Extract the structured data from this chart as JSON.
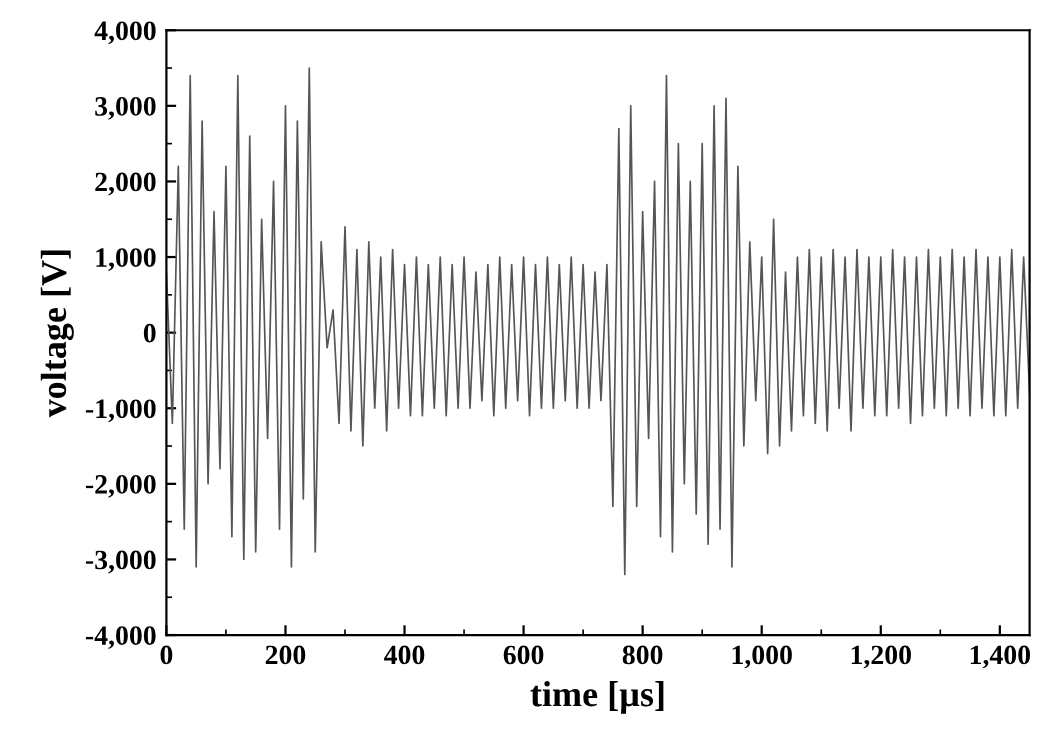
{
  "chart_data": {
    "type": "line",
    "xlabel": "time [µs]",
    "ylabel": "voltage [V]",
    "xlim": [
      0,
      1450
    ],
    "ylim": [
      -4000,
      4000
    ],
    "xticks": [
      0,
      200,
      400,
      600,
      800,
      {
        "value": 1000,
        "label": "1,000"
      },
      {
        "value": 1200,
        "label": "1,200"
      },
      {
        "value": 1400,
        "label": "1,400"
      }
    ],
    "yticks": [
      {
        "value": -4000,
        "label": "-4,000"
      },
      {
        "value": -3000,
        "label": "-3,000"
      },
      {
        "value": -2000,
        "label": "-2,000"
      },
      {
        "value": -1000,
        "label": "-1,000"
      },
      0,
      {
        "value": 1000,
        "label": "1,000"
      },
      {
        "value": 2000,
        "label": "2,000"
      },
      {
        "value": 3000,
        "label": "3,000"
      },
      {
        "value": 4000,
        "label": "4,000"
      }
    ],
    "grid": false,
    "legend": false,
    "marker": "none",
    "line_style": "solid",
    "x": [
      0,
      10,
      20,
      30,
      40,
      50,
      60,
      70,
      80,
      90,
      100,
      110,
      120,
      130,
      140,
      150,
      160,
      170,
      180,
      190,
      200,
      210,
      220,
      230,
      240,
      250,
      260,
      270,
      280,
      290,
      300,
      310,
      320,
      330,
      340,
      350,
      360,
      370,
      380,
      390,
      400,
      410,
      420,
      430,
      440,
      450,
      460,
      470,
      480,
      490,
      500,
      510,
      520,
      530,
      540,
      550,
      560,
      570,
      580,
      590,
      600,
      610,
      620,
      630,
      640,
      650,
      660,
      670,
      680,
      690,
      700,
      710,
      720,
      730,
      740,
      750,
      760,
      770,
      780,
      790,
      800,
      810,
      820,
      830,
      840,
      850,
      860,
      870,
      880,
      890,
      900,
      910,
      920,
      930,
      940,
      950,
      960,
      970,
      980,
      990,
      1000,
      1010,
      1020,
      1030,
      1040,
      1050,
      1060,
      1070,
      1080,
      1090,
      1100,
      1110,
      1120,
      1130,
      1140,
      1150,
      1160,
      1170,
      1180,
      1190,
      1200,
      1210,
      1220,
      1230,
      1240,
      1250,
      1260,
      1270,
      1280,
      1290,
      1300,
      1310,
      1320,
      1330,
      1340,
      1350,
      1360,
      1370,
      1380,
      1390,
      1400,
      1410,
      1420,
      1430,
      1440,
      1450
    ],
    "series": [
      {
        "color": "#555555",
        "values": [
          800,
          -1200,
          2200,
          -2600,
          3400,
          -3100,
          2800,
          -2000,
          1600,
          -1800,
          2200,
          -2700,
          3400,
          -3000,
          2600,
          -2900,
          1500,
          -1400,
          2000,
          -2600,
          3000,
          -3100,
          2800,
          -2200,
          3500,
          -2900,
          1200,
          -200,
          300,
          -1200,
          1400,
          -1300,
          1100,
          -1500,
          1200,
          -1000,
          1000,
          -1300,
          1100,
          -1000,
          900,
          -1100,
          1000,
          -1100,
          900,
          -1000,
          1000,
          -1100,
          900,
          -1000,
          1000,
          -1000,
          800,
          -900,
          900,
          -1100,
          1000,
          -1000,
          900,
          -900,
          1000,
          -1100,
          900,
          -1000,
          1000,
          -1000,
          900,
          -900,
          1000,
          -1000,
          900,
          -1000,
          800,
          -900,
          900,
          -2300,
          2700,
          -3200,
          3000,
          -2300,
          1600,
          -1400,
          2000,
          -2700,
          3400,
          -2900,
          2500,
          -2000,
          2000,
          -2400,
          2500,
          -2800,
          3000,
          -2600,
          3100,
          -3100,
          2200,
          -1500,
          1200,
          -900,
          1000,
          -1600,
          1500,
          -1500,
          800,
          -1300,
          1000,
          -1100,
          1100,
          -1200,
          1000,
          -1300,
          1100,
          -1000,
          1000,
          -1300,
          1100,
          -1000,
          1000,
          -1100,
          1000,
          -1100,
          1100,
          -1000,
          1000,
          -1200,
          1000,
          -1100,
          1100,
          -1000,
          1000,
          -1100,
          1100,
          -1000,
          1000,
          -1100,
          1100,
          -1000,
          1000,
          -1100,
          1000,
          -1100,
          1100,
          -1000,
          1000,
          -800
        ]
      }
    ]
  }
}
